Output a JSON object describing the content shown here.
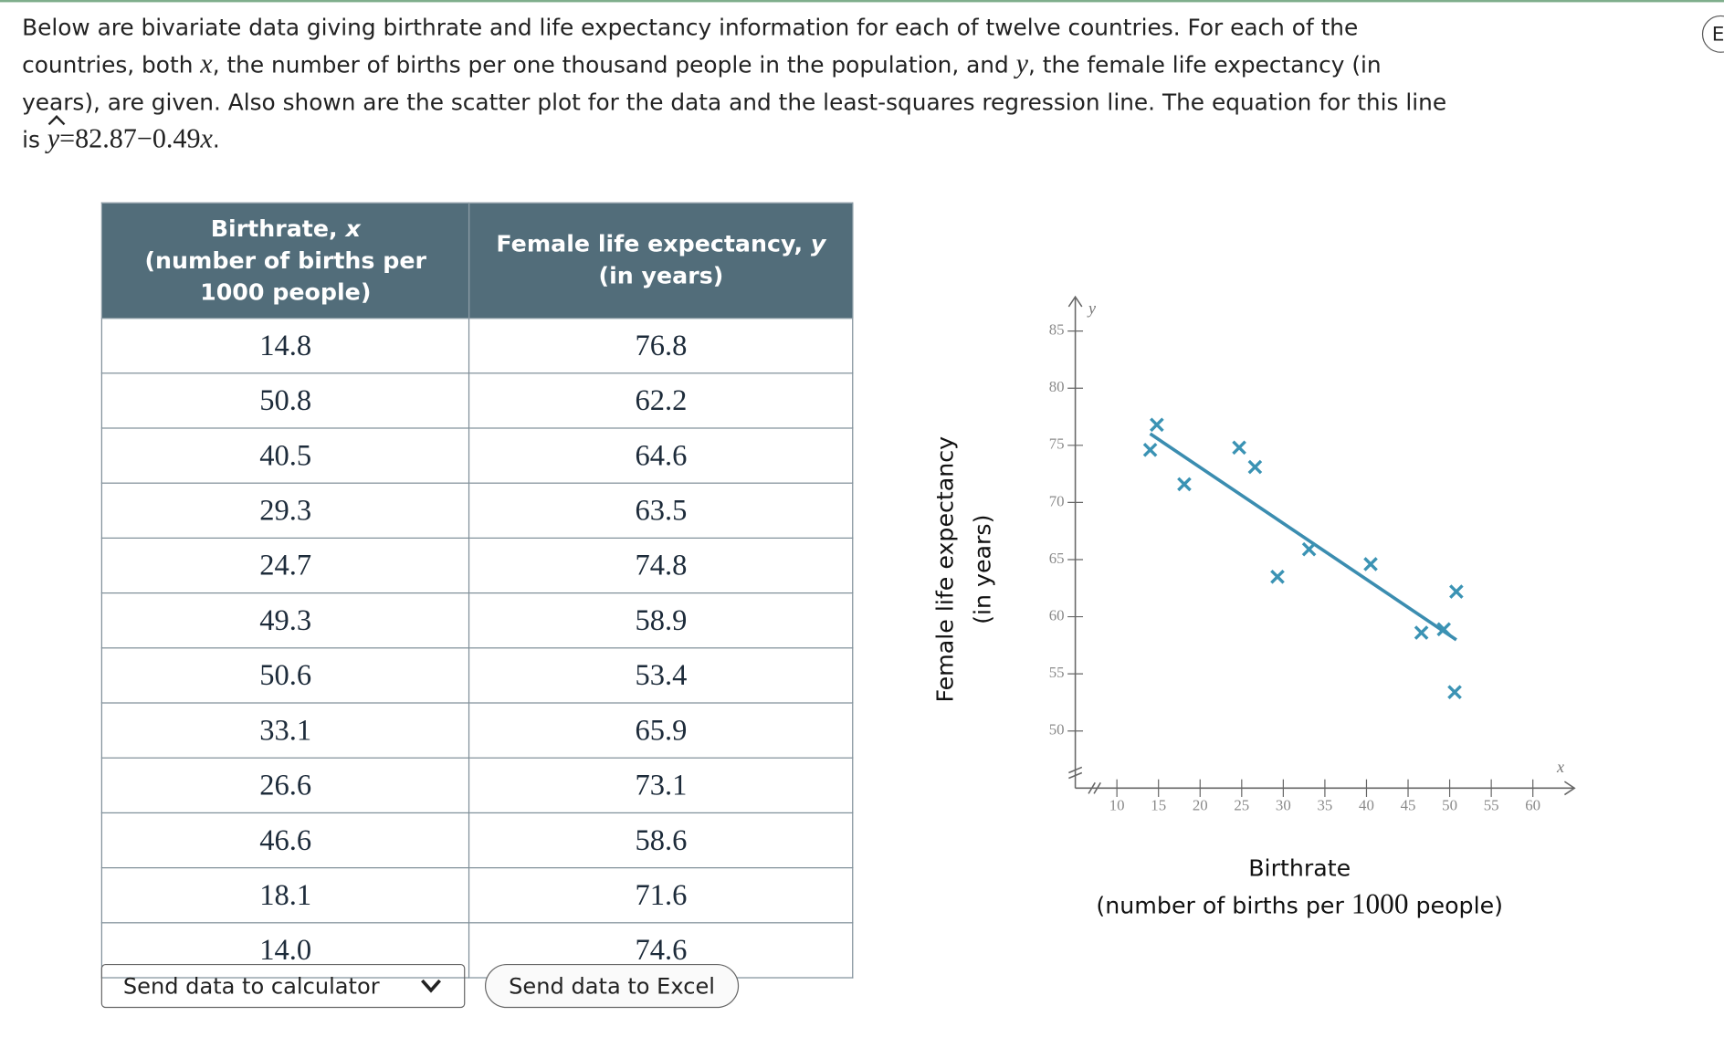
{
  "intro": [
    [
      {
        "text": "Below are bivariate data giving birthrate and life expectancy information for each of twelve countries. For each of the"
      }
    ],
    [
      {
        "text": "countries, both "
      },
      {
        "text": "x",
        "style": "var"
      },
      {
        "text": ", the number of births per one thousand people in the population, and "
      },
      {
        "text": "y",
        "style": "var"
      },
      {
        "text": ", the female life expectancy (in"
      }
    ],
    [
      {
        "text": "years), are given. Also shown are the scatter plot for the data and the least-squares regression line. The equation for this line"
      }
    ],
    [
      {
        "text": "is "
      },
      {
        "text": "y",
        "style": "var",
        "hat": true
      },
      {
        "text": "=82.87−0.49",
        "style": "num"
      },
      {
        "text": "x",
        "style": "var"
      },
      {
        "text": "."
      }
    ]
  ],
  "table": {
    "header": [
      {
        "label": "Birthrate, ",
        "var": "x",
        "note": "(number of births per",
        "note2": "1000 people)"
      },
      {
        "label": "Female life expectancy, ",
        "var": "y",
        "note": "(in years)",
        "note2": null
      }
    ],
    "rows": [
      [
        "14.8",
        "76.8"
      ],
      [
        "50.8",
        "62.2"
      ],
      [
        "40.5",
        "64.6"
      ],
      [
        "29.3",
        "63.5"
      ],
      [
        "24.7",
        "74.8"
      ],
      [
        "49.3",
        "58.9"
      ],
      [
        "50.6",
        "53.4"
      ],
      [
        "33.1",
        "65.9"
      ],
      [
        "26.6",
        "73.1"
      ],
      [
        "46.6",
        "58.6"
      ],
      [
        "18.1",
        "71.6"
      ],
      [
        "14.0",
        "74.6"
      ]
    ]
  },
  "buttons": {
    "calculator": "Send data to calculator",
    "excel": "Send data to Excel"
  },
  "side_button": "E",
  "chart_data": {
    "type": "scatter",
    "x": [
      14.8,
      50.8,
      40.5,
      29.3,
      24.7,
      49.3,
      50.6,
      33.1,
      26.6,
      46.6,
      18.1,
      14.0
    ],
    "y": [
      76.8,
      62.2,
      64.6,
      63.5,
      74.8,
      58.9,
      53.4,
      65.9,
      73.1,
      58.6,
      71.6,
      74.6
    ],
    "color": "#3b93b4",
    "regression": {
      "intercept": 82.87,
      "slope": -0.49,
      "color": "#3b8db0"
    },
    "xlim": [
      5,
      65
    ],
    "ylim": [
      45,
      88
    ],
    "xticks": [
      10,
      15,
      20,
      25,
      30,
      35,
      40,
      45,
      50,
      55,
      60
    ],
    "yticks": [
      50,
      55,
      60,
      65,
      70,
      75,
      80,
      85
    ],
    "x_var": "x",
    "y_var": "y",
    "ylabel": [
      "Female life expectancy",
      "(in years)"
    ],
    "xlabel": [
      "Birthrate",
      "(number of births per ",
      "1000",
      " people)"
    ]
  }
}
